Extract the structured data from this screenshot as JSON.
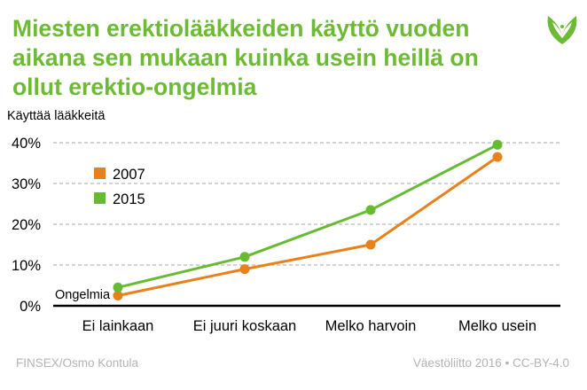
{
  "header": {
    "title": "Miesten erektiolääkkeiden käyttö vuoden aikana sen mukaan kuinka usein heillä on ollut erektio-ongelmia",
    "logo_icon": "vaestoliitto-leaf-logo-icon"
  },
  "footer": {
    "source": "FINSEX/Osmo Kontula",
    "credit": "Väestöliitto 2016 • CC-BY-4.0"
  },
  "colors": {
    "title": "#6dbb35",
    "series_2007": "#e8811a",
    "series_2015": "#66bb33",
    "grid": "#a6a6a6",
    "footer": "#b3b3b3"
  },
  "chart_data": {
    "type": "line",
    "title": "Miesten erektiolääkkeiden käyttö vuoden aikana sen mukaan kuinka usein heillä on ollut erektio-ongelmia",
    "ylabel": "Käyttää lääkkeitä",
    "xlabel": "Ongelmia",
    "categories": [
      "Ei lainkaan",
      "Ei juuri koskaan",
      "Melko harvoin",
      "Melko usein"
    ],
    "series": [
      {
        "name": "2007",
        "values": [
          2.5,
          9,
          15,
          36.5
        ],
        "color": "#e8811a"
      },
      {
        "name": "2015",
        "values": [
          4.5,
          12,
          23.5,
          39.5
        ],
        "color": "#66bb33"
      }
    ],
    "y_ticks": [
      "0%",
      "10%",
      "20%",
      "30%",
      "40%"
    ],
    "y_tick_values": [
      0,
      10,
      20,
      30,
      40
    ],
    "ylim": [
      0,
      40
    ],
    "grid": true,
    "legend_position": "top-left"
  }
}
